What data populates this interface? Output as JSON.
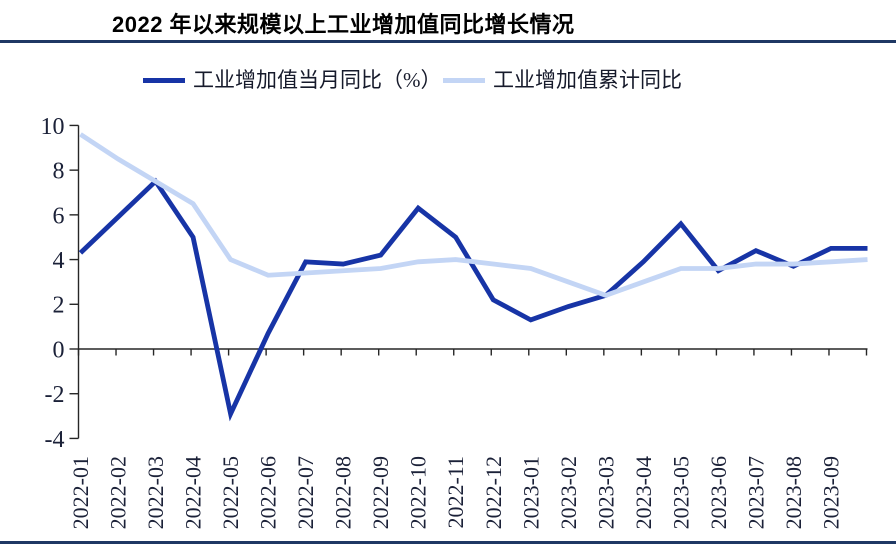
{
  "page": {
    "background": "#ffffff"
  },
  "figure": {
    "title": "2022 年以来规模以上工业增加值同比增长情况",
    "divider_color": "#1F3864"
  },
  "legend": {
    "text_color": "#161a2b",
    "items": [
      {
        "label": "工业增加值当月同比（%）",
        "color": "#1734A6"
      },
      {
        "label": "工业增加值累计同比",
        "color": "#C3D5F5"
      }
    ]
  },
  "chart_data": {
    "type": "line",
    "title": "2022 年以来规模以上工业增加值同比增长情况",
    "x_labels": [
      "2022-01",
      "2022-02",
      "2022-03",
      "2022-04",
      "2022-05",
      "2022-06",
      "2022-07",
      "2022-08",
      "2022-09",
      "2022-10",
      "2022-11",
      "2022-12",
      "2023-01",
      "2023-02",
      "2023-03",
      "2023-04",
      "2023-05",
      "2023-06",
      "2023-07",
      "2023-08",
      "2023-09"
    ],
    "y_ticks": [
      -4,
      -2,
      0,
      2,
      4,
      6,
      8,
      10
    ],
    "ylim": [
      -4,
      10
    ],
    "grid": false,
    "legend_position": "top",
    "axis_color": "#262626",
    "tick_label_color": "#1b2138",
    "series": [
      {
        "name": "工业增加值当月同比（%）",
        "color": "#1734A6",
        "values": [
          4.3,
          5.9,
          7.5,
          5.0,
          -2.9,
          0.7,
          3.9,
          3.8,
          4.2,
          6.3,
          5.0,
          2.2,
          1.3,
          1.9,
          2.4,
          3.9,
          5.6,
          3.5,
          4.4,
          3.7,
          4.5
        ],
        "edge_extension_value": 4.5
      },
      {
        "name": "工业增加值累计同比",
        "color": "#C3D5F5",
        "values": [
          9.6,
          8.5,
          7.5,
          6.5,
          4.0,
          3.3,
          3.4,
          3.5,
          3.6,
          3.9,
          4.0,
          3.8,
          3.6,
          3.0,
          2.4,
          3.0,
          3.6,
          3.6,
          3.8,
          3.8,
          3.9
        ],
        "edge_extension_value": 4.0
      }
    ]
  }
}
